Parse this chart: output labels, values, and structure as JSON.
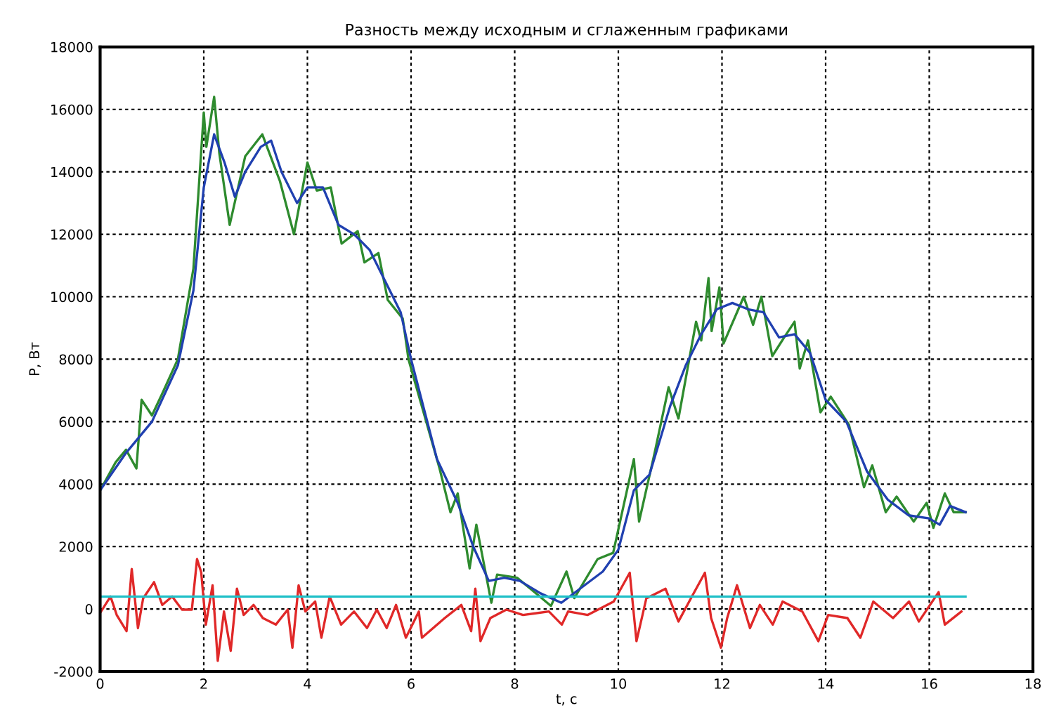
{
  "chart_data": {
    "type": "line",
    "title": "Разность между исходным и сглаженным графиками",
    "xlabel": "t, c",
    "ylabel": "P, Вт",
    "xlim": [
      0,
      18
    ],
    "xticks": [
      0,
      2,
      4,
      6,
      8,
      10,
      12,
      14,
      16,
      18
    ],
    "ylim": [
      -2000,
      18000
    ],
    "yticks": [
      -2000,
      0,
      2000,
      4000,
      6000,
      8000,
      10000,
      12000,
      14000,
      16000,
      18000
    ],
    "grid": true,
    "marker": "none",
    "line_style": "solid",
    "series": [
      {
        "color": "#2e8b2e",
        "x": [
          0,
          0.3,
          0.5,
          0.7,
          0.8,
          1.0,
          1.2,
          1.5,
          1.8,
          2.0,
          2.05,
          2.2,
          2.3,
          2.5,
          2.8,
          3.13,
          3.47,
          3.74,
          4.0,
          4.18,
          4.45,
          4.66,
          4.97,
          5.1,
          5.37,
          5.55,
          5.84,
          5.95,
          6.55,
          6.76,
          6.9,
          7.13,
          7.26,
          7.55,
          7.66,
          8.05,
          8.7,
          9.0,
          9.15,
          9.6,
          9.9,
          10.3,
          10.4,
          10.7,
          10.97,
          11.16,
          11.5,
          11.6,
          11.74,
          11.8,
          11.95,
          12.03,
          12.42,
          12.6,
          12.76,
          12.97,
          13.2,
          13.4,
          13.5,
          13.66,
          13.9,
          14.1,
          14.45,
          14.74,
          14.9,
          15.16,
          15.37,
          15.7,
          15.95,
          16.08,
          16.3,
          16.47,
          16.7
        ],
        "values": [
          3800,
          4700,
          5100,
          4500,
          6700,
          6200,
          6900,
          8000,
          10900,
          15900,
          14800,
          16400,
          14600,
          12300,
          14500,
          15200,
          13700,
          12000,
          14300,
          13400,
          13500,
          11700,
          12100,
          11100,
          11400,
          9900,
          9300,
          8000,
          4500,
          3100,
          3700,
          1300,
          2700,
          200,
          1100,
          1000,
          100,
          1200,
          350,
          1600,
          1800,
          4800,
          2800,
          5000,
          7100,
          6100,
          9200,
          8600,
          10600,
          8900,
          10300,
          8500,
          10000,
          9100,
          10000,
          8100,
          8700,
          9200,
          7700,
          8600,
          6300,
          6800,
          5900,
          3900,
          4600,
          3100,
          3600,
          2800,
          3400,
          2600,
          3700,
          3100,
          3100
        ]
      },
      {
        "color": "#2040b0",
        "x": [
          0,
          0.5,
          1,
          1.5,
          1.8,
          2.0,
          2.2,
          2.4,
          2.6,
          2.8,
          3.1,
          3.3,
          3.5,
          3.8,
          4.0,
          4.3,
          4.6,
          4.9,
          5.2,
          5.5,
          5.8,
          6.0,
          6.5,
          6.9,
          7.2,
          7.5,
          7.8,
          8.1,
          8.5,
          8.9,
          9.3,
          9.7,
          10.0,
          10.3,
          10.6,
          11.0,
          11.3,
          11.6,
          11.9,
          12.2,
          12.5,
          12.8,
          13.1,
          13.4,
          13.7,
          14.0,
          14.4,
          14.8,
          15.2,
          15.6,
          16.0,
          16.2,
          16.4,
          16.7
        ],
        "values": [
          3800,
          5000,
          6000,
          7800,
          10200,
          13500,
          15200,
          14300,
          13200,
          14000,
          14800,
          15000,
          14000,
          13000,
          13500,
          13500,
          12300,
          12000,
          11500,
          10500,
          9500,
          8000,
          4800,
          3400,
          2000,
          900,
          1000,
          900,
          500,
          200,
          700,
          1200,
          1900,
          3800,
          4300,
          6500,
          7800,
          8800,
          9600,
          9800,
          9600,
          9500,
          8700,
          8800,
          8200,
          6700,
          6000,
          4400,
          3500,
          3000,
          2900,
          2700,
          3300,
          3100
        ]
      },
      {
        "color": "#e02828",
        "x": [
          0.01,
          0.2,
          0.32,
          0.51,
          0.61,
          0.73,
          0.83,
          1.04,
          1.2,
          1.39,
          1.58,
          1.77,
          1.87,
          1.95,
          2.04,
          2.17,
          2.27,
          2.39,
          2.52,
          2.64,
          2.77,
          2.96,
          3.14,
          3.39,
          3.62,
          3.71,
          3.83,
          3.96,
          4.15,
          4.27,
          4.43,
          4.65,
          4.9,
          5.15,
          5.34,
          5.53,
          5.71,
          5.9,
          6.15,
          6.21,
          6.65,
          6.97,
          7.16,
          7.24,
          7.34,
          7.53,
          7.84,
          8.16,
          8.66,
          8.91,
          9.03,
          9.41,
          9.91,
          10.22,
          10.35,
          10.54,
          10.91,
          11.16,
          11.42,
          11.67,
          11.79,
          11.98,
          12.1,
          12.29,
          12.54,
          12.73,
          12.98,
          13.17,
          13.55,
          13.86,
          14.05,
          14.42,
          14.67,
          14.92,
          15.3,
          15.61,
          15.8,
          16.18,
          16.3,
          16.62
        ],
        "values": [
          -100,
          400,
          -190,
          -710,
          1280,
          -610,
          340,
          860,
          130,
          400,
          -20,
          -20,
          1600,
          1180,
          -500,
          760,
          -1660,
          -80,
          -1340,
          650,
          -190,
          130,
          -290,
          -500,
          -20,
          -1240,
          760,
          -80,
          240,
          -920,
          400,
          -500,
          -80,
          -610,
          -20,
          -610,
          130,
          -920,
          -80,
          -920,
          -290,
          130,
          -710,
          650,
          -1030,
          -290,
          -20,
          -190,
          -80,
          -500,
          -80,
          -190,
          240,
          1160,
          -1030,
          340,
          650,
          -400,
          400,
          1160,
          -290,
          -1240,
          -290,
          760,
          -610,
          130,
          -500,
          240,
          -80,
          -1030,
          -190,
          -290,
          -920,
          240,
          -290,
          240,
          -400,
          540,
          -500,
          -80
        ]
      },
      {
        "color": "#20c0c8",
        "x": [
          0,
          16.7
        ],
        "values": [
          400,
          400
        ]
      }
    ]
  }
}
